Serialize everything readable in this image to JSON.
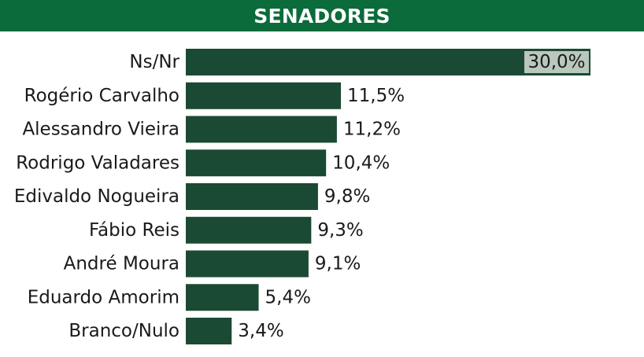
{
  "header": {
    "title": "SENADORES"
  },
  "colors": {
    "header_bg": "#0b6b3a",
    "bar": "#1a4a33",
    "highlight_label_bg": "#b9c7bd",
    "text": "#1a1a1a"
  },
  "chart_data": {
    "type": "bar",
    "orientation": "horizontal",
    "title": "SENADORES",
    "categories": [
      "Ns/Nr",
      "Rogério Carvalho",
      "Alessandro Vieira",
      "Rodrigo Valadares",
      "Edivaldo Nogueira",
      "Fábio Reis",
      "André Moura",
      "Eduardo Amorim",
      "Branco/Nulo"
    ],
    "values": [
      30.0,
      11.5,
      11.2,
      10.4,
      9.8,
      9.3,
      9.1,
      5.4,
      3.4
    ],
    "value_labels": [
      "30,0%",
      "11,5%",
      "11,2%",
      "10,4%",
      "9,8%",
      "9,3%",
      "9,1%",
      "5,4%",
      "3,4%"
    ],
    "unit": "%",
    "xlim": [
      0,
      30
    ],
    "grid": false,
    "legend": "none"
  }
}
